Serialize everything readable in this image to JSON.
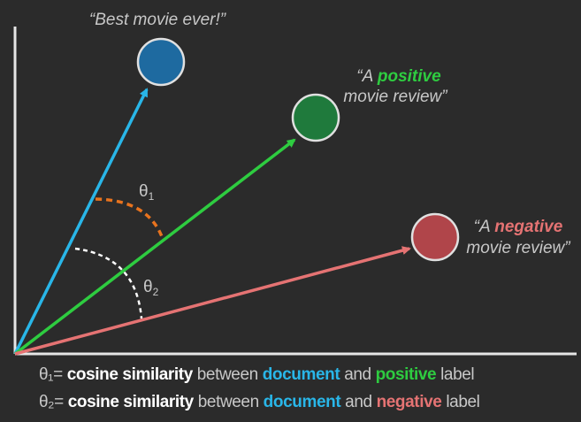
{
  "colors": {
    "background": "#2b2b2b",
    "axis": "#e6e6e6",
    "document": "#29b6e8",
    "positive": "#2ecc40",
    "negative": "#e57373",
    "theta1_arc": "#e8731e",
    "theta2_arc": "#ffffff",
    "document_node": "#1e6aa0",
    "positive_node": "#1f7a3c",
    "negative_node": "#b0454a",
    "text": "#c8c8c8"
  },
  "labels": {
    "document": "“Best movie ever!”",
    "positive_prefix": "“A ",
    "positive_word": "positive",
    "positive_suffix": "movie review”",
    "negative_prefix": "“A ",
    "negative_word": "negative",
    "negative_suffix": "movie review”"
  },
  "angles": {
    "theta1": "θ",
    "theta1_sub": "1",
    "theta2": "θ",
    "theta2_sub": "2"
  },
  "legend": {
    "line1": {
      "symbol": "θ₁=",
      "metric": "cosine similarity",
      "between": "between",
      "document": "document",
      "and": "and",
      "label_word": "positive",
      "label": "label"
    },
    "line2": {
      "symbol": "θ₂=",
      "metric": "cosine similarity",
      "between": "between",
      "document": "document",
      "and": "and",
      "label_word": "negative",
      "label": "label"
    }
  }
}
